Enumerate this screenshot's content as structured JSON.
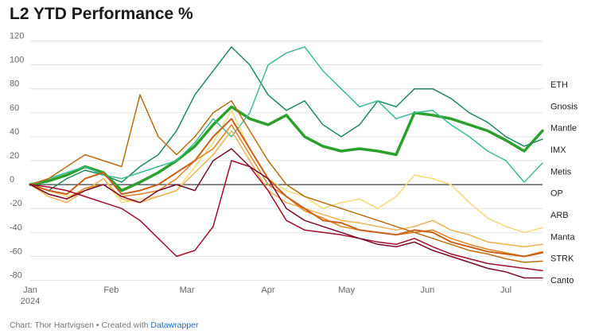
{
  "chart_data": {
    "type": "line",
    "title": "L2 YTD Performance %",
    "xlabel": "",
    "ylabel": "",
    "x_labels": [
      "Jan",
      "Feb",
      "Mar",
      "Apr",
      "May",
      "Jun",
      "Jul"
    ],
    "x_year": "2024",
    "ylim": [
      -85,
      125
    ],
    "y_ticks": [
      "120",
      "100",
      "80",
      "60",
      "40",
      "20",
      "0",
      "-20",
      "-40",
      "-60",
      "-80"
    ],
    "grid": true,
    "x": [
      "Jan 1",
      "Jan 8",
      "Jan 15",
      "Jan 22",
      "Jan 29",
      "Feb 5",
      "Feb 12",
      "Feb 19",
      "Feb 26",
      "Mar 4",
      "Mar 11",
      "Mar 18",
      "Mar 25",
      "Apr 1",
      "Apr 8",
      "Apr 15",
      "Apr 22",
      "Apr 29",
      "May 6",
      "May 13",
      "May 20",
      "May 27",
      "Jun 3",
      "Jun 10",
      "Jun 17",
      "Jun 24",
      "Jul 1",
      "Jul 8",
      "Jul 13"
    ],
    "series": [
      {
        "name": "ETH",
        "color": "#2ca02c",
        "width": 3.5,
        "values": [
          0,
          3,
          8,
          15,
          10,
          -5,
          2,
          10,
          20,
          32,
          50,
          65,
          55,
          50,
          58,
          40,
          32,
          28,
          30,
          28,
          25,
          60,
          58,
          55,
          50,
          45,
          37,
          28,
          45
        ]
      },
      {
        "name": "Gnosis",
        "color": "#1f8a5c",
        "width": 1.5,
        "values": [
          0,
          -5,
          5,
          12,
          8,
          2,
          15,
          25,
          45,
          75,
          95,
          115,
          100,
          75,
          62,
          70,
          50,
          40,
          50,
          70,
          65,
          80,
          80,
          72,
          60,
          52,
          40,
          32,
          38
        ]
      },
      {
        "name": "Mantle",
        "color": "#3dba96",
        "width": 1.5,
        "values": [
          0,
          5,
          10,
          15,
          8,
          5,
          10,
          15,
          20,
          35,
          55,
          40,
          60,
          100,
          110,
          115,
          95,
          80,
          65,
          70,
          55,
          60,
          62,
          50,
          40,
          28,
          20,
          2,
          18
        ]
      },
      {
        "name": "IMX",
        "color": "#f5d97a",
        "width": 1.5,
        "values": [
          0,
          -5,
          -10,
          -5,
          5,
          -15,
          -12,
          -10,
          -5,
          15,
          35,
          62,
          30,
          5,
          -5,
          -10,
          -20,
          -15,
          -12,
          -20,
          -10,
          8,
          5,
          0,
          -15,
          -28,
          -35,
          -40,
          -36
        ]
      },
      {
        "name": "Metis",
        "color": "#f0b050",
        "width": 1.5,
        "values": [
          0,
          -10,
          -15,
          -5,
          5,
          -12,
          -15,
          -10,
          -5,
          10,
          25,
          45,
          20,
          -5,
          -15,
          -20,
          -25,
          -30,
          -32,
          -35,
          -38,
          -35,
          -30,
          -38,
          -42,
          -48,
          -50,
          -52,
          -50
        ]
      },
      {
        "name": "OP",
        "color": "#e08020",
        "width": 1.5,
        "values": [
          0,
          -8,
          -12,
          -3,
          0,
          -10,
          -8,
          -5,
          5,
          20,
          30,
          50,
          25,
          0,
          -10,
          -22,
          -28,
          -35,
          -38,
          -40,
          -42,
          -40,
          -38,
          -45,
          -50,
          -54,
          -57,
          -60,
          -56
        ]
      },
      {
        "name": "ARB",
        "color": "#c8621a",
        "width": 2,
        "values": [
          0,
          -5,
          -8,
          5,
          10,
          -8,
          -5,
          0,
          10,
          20,
          40,
          55,
          30,
          5,
          -10,
          -20,
          -30,
          -32,
          -38,
          -40,
          -42,
          -38,
          -40,
          -48,
          -52,
          -56,
          -58,
          -60,
          -57
        ]
      },
      {
        "name": "Manta",
        "color": "#b86d10",
        "width": 1.5,
        "values": [
          0,
          5,
          15,
          25,
          20,
          15,
          75,
          40,
          25,
          40,
          60,
          70,
          45,
          20,
          0,
          -10,
          -15,
          -20,
          -25,
          -30,
          -35,
          -40,
          -45,
          -50,
          -55,
          -58,
          -62,
          -65,
          -64
        ]
      },
      {
        "name": "STRK",
        "color": "#a0102a",
        "width": 1.5,
        "values": [
          0,
          -2,
          -5,
          -10,
          -15,
          -20,
          -30,
          -45,
          -60,
          -55,
          -35,
          20,
          15,
          -5,
          -30,
          -38,
          -40,
          -42,
          -45,
          -48,
          -50,
          -45,
          -52,
          -58,
          -62,
          -66,
          -68,
          -70,
          -72
        ]
      },
      {
        "name": "Canto",
        "color": "#7a0a2a",
        "width": 1.5,
        "values": [
          0,
          -8,
          -12,
          -5,
          0,
          -10,
          -15,
          -5,
          0,
          -5,
          20,
          30,
          15,
          5,
          -20,
          -30,
          -35,
          -40,
          -45,
          -50,
          -52,
          -48,
          -55,
          -60,
          -65,
          -70,
          -73,
          -78,
          -78
        ]
      }
    ]
  },
  "footer": {
    "credit": "Chart: Thor Hartvigsen • Created with ",
    "link": "Datawrapper"
  }
}
